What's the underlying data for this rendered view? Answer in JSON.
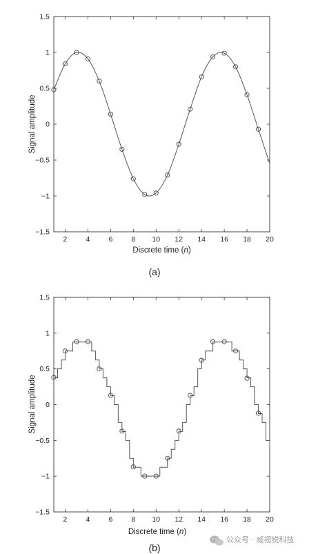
{
  "chart_data": [
    {
      "type": "line",
      "caption": "(a)",
      "xlabel": "Discrete time (n)",
      "ylabel": "Signal amplitude",
      "xlim": [
        1,
        20
      ],
      "ylim": [
        -1.5,
        1.5
      ],
      "xticks": [
        "2",
        "4",
        "6",
        "8",
        "10",
        "12",
        "14",
        "16",
        "18",
        "20"
      ],
      "yticks": [
        "1.5",
        "1",
        "0.5",
        "0",
        "−0.5",
        "−1",
        "−1.5"
      ],
      "grid": false,
      "series": [
        {
          "style": "line-with-circle-markers",
          "x": [
            1,
            2,
            3,
            4,
            5,
            6,
            7,
            8,
            9,
            10,
            11,
            12,
            13,
            14,
            15,
            16,
            17,
            18,
            19
          ],
          "y": [
            0.48,
            0.84,
            1.0,
            0.91,
            0.6,
            0.14,
            -0.35,
            -0.76,
            -0.98,
            -0.96,
            -0.71,
            -0.28,
            0.21,
            0.66,
            0.94,
            0.99,
            0.8,
            0.41,
            -0.07
          ]
        }
      ]
    },
    {
      "type": "line",
      "caption": "(b)",
      "xlabel": "Discrete time (n)",
      "ylabel": "Signal amplitude",
      "xlim": [
        1,
        20
      ],
      "ylim": [
        -1.5,
        1.5
      ],
      "xticks": [
        "2",
        "4",
        "6",
        "8",
        "10",
        "12",
        "14",
        "16",
        "18",
        "20"
      ],
      "yticks": [
        "1.5",
        "1",
        "0.5",
        "0",
        "−0.5",
        "−1",
        "−1.5"
      ],
      "grid": false,
      "series": [
        {
          "style": "staircase-with-circle-markers",
          "x": [
            1,
            2,
            3,
            4,
            5,
            6,
            7,
            8,
            9,
            10,
            11,
            12,
            13,
            14,
            15,
            16,
            17,
            18,
            19
          ],
          "y": [
            0.38,
            0.75,
            0.88,
            0.88,
            0.5,
            0.13,
            -0.37,
            -0.87,
            -1.0,
            -1.0,
            -0.75,
            -0.37,
            0.13,
            0.62,
            0.88,
            0.88,
            0.75,
            0.37,
            -0.12
          ]
        }
      ]
    }
  ],
  "watermark": "公众号 · 威视锐科技"
}
